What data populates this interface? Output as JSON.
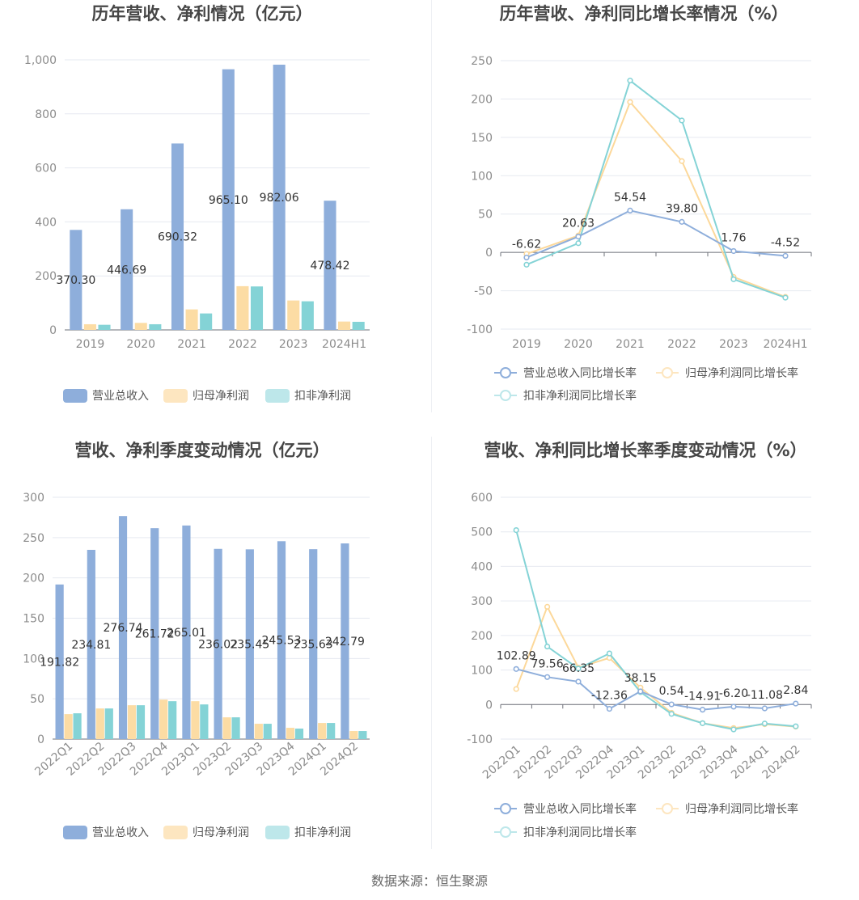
{
  "colors": {
    "revenue": "#8eaedb",
    "net_profit": "#fcdca4",
    "deducted_profit": "#84d3d6"
  },
  "source": "数据来源：恒生聚源",
  "chart_data": [
    {
      "type": "bar",
      "title": "历年营收、净利情况（亿元）",
      "categories": [
        "2019",
        "2020",
        "2021",
        "2022",
        "2023",
        "2024H1"
      ],
      "series": [
        {
          "name": "营业总收入",
          "values": [
            370.3,
            446.69,
            690.32,
            965.1,
            982.06,
            478.42
          ],
          "labels": [
            "370.30",
            "446.69",
            "690.32",
            "965.10",
            "982.06",
            "478.42"
          ]
        },
        {
          "name": "归母净利润",
          "values": [
            21,
            26,
            76,
            162,
            109,
            31
          ]
        },
        {
          "name": "扣非净利润",
          "values": [
            19,
            21,
            61,
            161,
            106,
            30
          ]
        }
      ],
      "ylim": [
        0,
        1000
      ],
      "yticks": [
        0,
        200,
        400,
        600,
        800,
        1000
      ],
      "ytick_labels": [
        "0",
        "200",
        "400",
        "600",
        "800",
        "1,000"
      ],
      "legend_position": "bottom"
    },
    {
      "type": "line",
      "title": "历年营收、净利同比增长率情况（%）",
      "categories": [
        "2019",
        "2020",
        "2021",
        "2022",
        "2023",
        "2024H1"
      ],
      "series": [
        {
          "name": "营业总收入同比增长率",
          "values": [
            -6.62,
            20.63,
            54.54,
            39.8,
            1.76,
            -4.52
          ],
          "labels": [
            "-6.62",
            "20.63",
            "54.54",
            "39.80",
            "1.76",
            "-4.52"
          ]
        },
        {
          "name": "归母净利润同比增长率",
          "values": [
            -2,
            22,
            196,
            119,
            -32,
            -58
          ]
        },
        {
          "name": "扣非净利润同比增长率",
          "values": [
            -16,
            12,
            224,
            172,
            -35,
            -59
          ]
        }
      ],
      "ylim": [
        -100,
        250
      ],
      "yticks": [
        -100,
        -50,
        0,
        50,
        100,
        150,
        200,
        250
      ],
      "ytick_labels": [
        "-100",
        "-50",
        "0",
        "50",
        "100",
        "150",
        "200",
        "250"
      ],
      "legend_position": "bottom"
    },
    {
      "type": "bar",
      "title": "营收、净利季度变动情况（亿元）",
      "categories": [
        "2022Q1",
        "2022Q2",
        "2022Q3",
        "2022Q4",
        "2023Q1",
        "2023Q2",
        "2023Q3",
        "2023Q4",
        "2024Q1",
        "2024Q2"
      ],
      "series": [
        {
          "name": "营业总收入",
          "values": [
            191.82,
            234.81,
            276.74,
            261.72,
            265.01,
            236.02,
            235.45,
            245.53,
            235.63,
            242.79
          ],
          "labels": [
            "191.82",
            "234.81",
            "276.74",
            "261.72",
            "265.01",
            "236.02",
            "235.45",
            "245.53",
            "235.63",
            "242.79"
          ]
        },
        {
          "name": "归母净利润",
          "values": [
            31,
            38,
            42,
            49,
            47,
            27,
            19,
            14,
            20,
            10
          ]
        },
        {
          "name": "扣非净利润",
          "values": [
            32,
            38,
            42,
            47,
            43,
            27,
            19,
            13,
            20,
            10
          ]
        }
      ],
      "ylim": [
        0,
        300
      ],
      "yticks": [
        0,
        50,
        100,
        150,
        200,
        250,
        300
      ],
      "ytick_labels": [
        "0",
        "50",
        "100",
        "150",
        "200",
        "250",
        "300"
      ],
      "legend_position": "bottom"
    },
    {
      "type": "line",
      "title": "营收、净利同比增长率季度变动情况（%）",
      "categories": [
        "2022Q1",
        "2022Q2",
        "2022Q3",
        "2022Q4",
        "2023Q1",
        "2023Q2",
        "2023Q3",
        "2023Q4",
        "2024Q1",
        "2024Q2"
      ],
      "series": [
        {
          "name": "营业总收入同比增长率",
          "values": [
            102.89,
            79.56,
            66.35,
            -12.36,
            38.15,
            0.54,
            -14.91,
            -6.2,
            -11.08,
            2.84
          ],
          "labels": [
            "102.89",
            "79.56",
            "66.35",
            "-12.36",
            "38.15",
            "0.54",
            "-14.91",
            "-6.20",
            "-11.08",
            "2.84"
          ]
        },
        {
          "name": "归母净利润同比增长率",
          "values": [
            45,
            283,
            107,
            135,
            49,
            -24,
            -54,
            -68,
            -57,
            -64
          ]
        },
        {
          "name": "扣非净利润同比增长率",
          "values": [
            505,
            168,
            104,
            148,
            36,
            -27,
            -54,
            -72,
            -55,
            -63
          ]
        }
      ],
      "ylim": [
        -100,
        600
      ],
      "yticks": [
        -100,
        0,
        100,
        200,
        300,
        400,
        500,
        600
      ],
      "ytick_labels": [
        "-100",
        "0",
        "100",
        "200",
        "300",
        "400",
        "500",
        "600"
      ],
      "legend_position": "bottom"
    }
  ]
}
